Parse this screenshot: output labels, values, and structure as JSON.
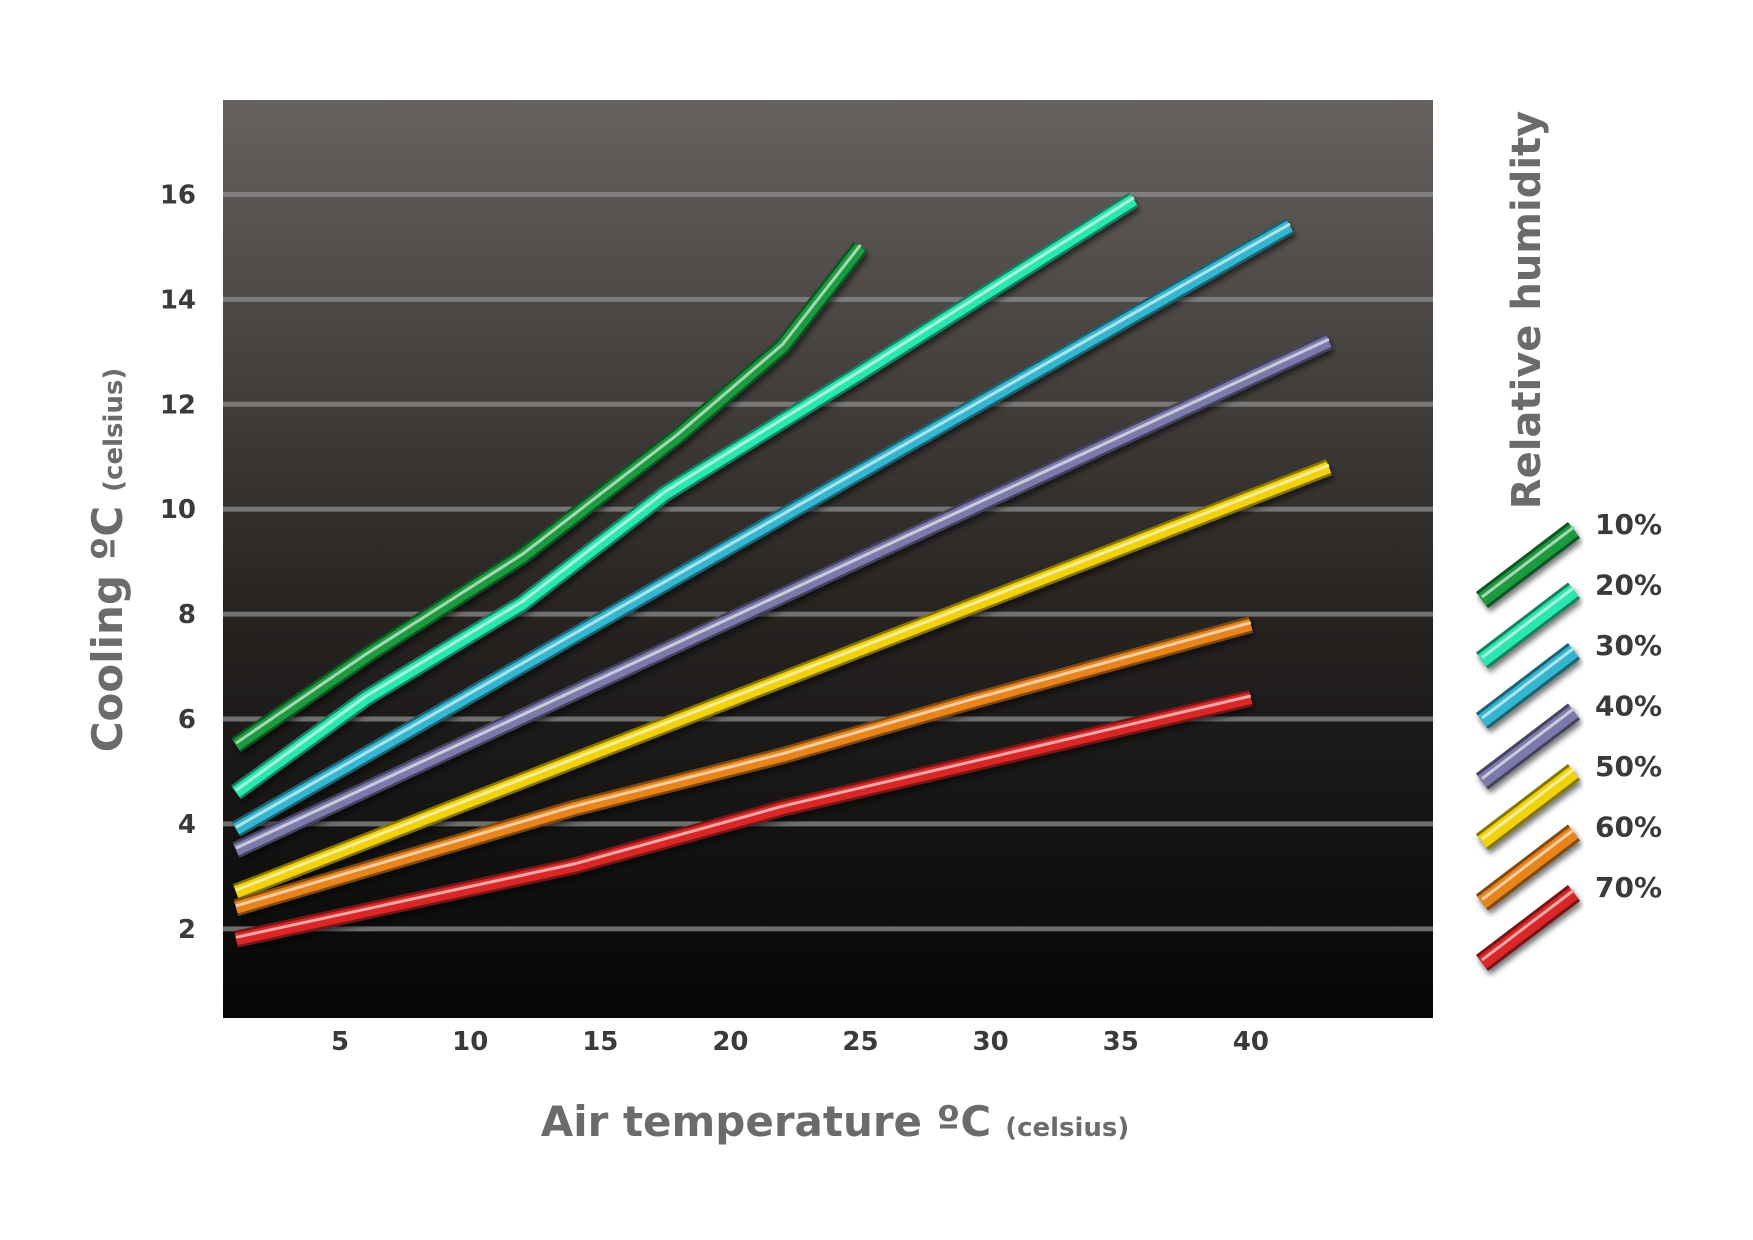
{
  "chart_data": {
    "type": "line",
    "x_axis": {
      "title": "Air temperature ºC",
      "unit": "(celsius)",
      "ticks": [
        5,
        10,
        15,
        20,
        25,
        30,
        35,
        40
      ],
      "range": [
        0.5,
        47
      ]
    },
    "y_axis": {
      "title": "Cooling ºC",
      "unit": "(celsius)",
      "ticks": [
        2,
        4,
        6,
        8,
        10,
        12,
        14,
        16
      ],
      "range": [
        0.3,
        17.8
      ]
    },
    "grid": "horizontal",
    "legend": {
      "title": "Relative humidity",
      "placement": "right"
    },
    "series": [
      {
        "name": "10%",
        "color": "#1f9a3f",
        "points": [
          [
            1,
            5.5
          ],
          [
            6,
            7.2
          ],
          [
            12,
            9.1
          ],
          [
            18,
            11.4
          ],
          [
            22,
            13.1
          ],
          [
            25,
            15.0
          ]
        ]
      },
      {
        "name": "20%",
        "color": "#2ce6b0",
        "points": [
          [
            1,
            4.6
          ],
          [
            6,
            6.4
          ],
          [
            12,
            8.2
          ],
          [
            17.5,
            10.3
          ],
          [
            25,
            12.6
          ],
          [
            35.5,
            15.9
          ]
        ]
      },
      {
        "name": "30%",
        "color": "#35b6cf",
        "points": [
          [
            1,
            3.9
          ],
          [
            41.5,
            15.4
          ]
        ]
      },
      {
        "name": "40%",
        "color": "#7c7aaa",
        "points": [
          [
            1,
            3.5
          ],
          [
            43,
            13.2
          ]
        ]
      },
      {
        "name": "50%",
        "color": "#f2d20a",
        "points": [
          [
            1,
            2.7
          ],
          [
            43,
            10.8
          ]
        ]
      },
      {
        "name": "60%",
        "color": "#e8841c",
        "points": [
          [
            1,
            2.4
          ],
          [
            14,
            4.3
          ],
          [
            22,
            5.3
          ],
          [
            29,
            6.3
          ],
          [
            40,
            7.8
          ]
        ]
      },
      {
        "name": "70%",
        "color": "#d92525",
        "points": [
          [
            1,
            1.8
          ],
          [
            14,
            3.2
          ],
          [
            22,
            4.3
          ],
          [
            40,
            6.4
          ]
        ]
      }
    ]
  }
}
